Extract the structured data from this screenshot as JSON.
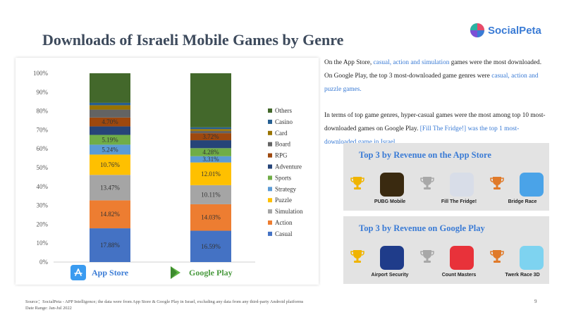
{
  "title": "Downloads of Israeli Mobile Games by Genre",
  "logo": {
    "text": "SocialPeta",
    "colors": [
      "#e94b6a",
      "#3a7bd5",
      "#7b4fd6",
      "#2bb3a3"
    ]
  },
  "chart_data": {
    "type": "bar",
    "stacked": true,
    "categories": [
      "App Store",
      "Google Play"
    ],
    "ylim": [
      0,
      100
    ],
    "yticks": [
      "0%",
      "10%",
      "20%",
      "30%",
      "40%",
      "50%",
      "60%",
      "70%",
      "80%",
      "90%",
      "100%"
    ],
    "legend_position": "right",
    "series": [
      {
        "name": "Casual",
        "color": "#4472c4",
        "values": [
          17.88,
          16.59
        ],
        "labels": [
          "17.88%",
          "16.59%"
        ]
      },
      {
        "name": "Action",
        "color": "#ed7d31",
        "values": [
          14.82,
          14.03
        ],
        "labels": [
          "14.82%",
          "14.03%"
        ]
      },
      {
        "name": "Simulation",
        "color": "#a5a5a5",
        "values": [
          13.47,
          10.11
        ],
        "labels": [
          "13.47%",
          "10.11%"
        ]
      },
      {
        "name": "Puzzle",
        "color": "#ffc000",
        "values": [
          10.76,
          12.01
        ],
        "labels": [
          "10.76%",
          "12.01%"
        ]
      },
      {
        "name": "Strategy",
        "color": "#5b9bd5",
        "values": [
          5.24,
          3.31
        ],
        "labels": [
          "5.24%",
          "3.31%"
        ]
      },
      {
        "name": "Sports",
        "color": "#70ad47",
        "values": [
          5.19,
          4.28
        ],
        "labels": [
          "5.19%",
          "4.28%"
        ]
      },
      {
        "name": "Adventure",
        "color": "#264478",
        "values": [
          4.5,
          4.2
        ],
        "labels": [
          "",
          ""
        ]
      },
      {
        "name": "RPG",
        "color": "#9e480e",
        "values": [
          4.7,
          3.72
        ],
        "labels": [
          "4.70%",
          "3.72%"
        ]
      },
      {
        "name": "Board",
        "color": "#636363",
        "values": [
          4.2,
          1.2
        ],
        "labels": [
          "",
          ""
        ]
      },
      {
        "name": "Card",
        "color": "#997300",
        "values": [
          2.3,
          1.0
        ],
        "labels": [
          "",
          ""
        ]
      },
      {
        "name": "Casino",
        "color": "#255e91",
        "values": [
          1.3,
          0.9
        ],
        "labels": [
          "",
          ""
        ]
      },
      {
        "name": "Others",
        "color": "#43682b",
        "values": [
          15.64,
          28.65
        ],
        "labels": [
          "",
          ""
        ]
      }
    ]
  },
  "stores": [
    {
      "label": "App Store",
      "color": "#3a7bd5",
      "icon": "app-store-icon"
    },
    {
      "label": "Google Play",
      "color": "#4a9a3f",
      "icon": "google-play-icon"
    }
  ],
  "insight": {
    "p1_a": "On the App Store, ",
    "p1_b": "casual, action and simulation",
    "p1_c": " games were the most downloaded. On Google Play, the top 3 most-downloaded game genres were ",
    "p1_d": "casual, action and puzzle games.",
    "p2_a": "In terms of top game genres, hyper-casual games were the most among top 10 most-downloaded games on Google Play. ",
    "p2_b": "[Fill The Fridge!] was the top 1 most-downloaded game in Israel."
  },
  "revenue_app_store": {
    "title": "Top 3 by Revenue on the App Store",
    "games": [
      {
        "name": "PUBG Mobile",
        "rank_color": "#f0b400",
        "icon": "pubg-icon",
        "icon_color": "#3a2a10"
      },
      {
        "name": "Fill The Fridge!",
        "rank_color": "#a8a8a8",
        "icon": "fridge-icon",
        "icon_color": "#d8dde8"
      },
      {
        "name": "Bridge Race",
        "rank_color": "#e07a2a",
        "icon": "bridge-race-icon",
        "icon_color": "#4aa3e8"
      }
    ]
  },
  "revenue_google_play": {
    "title": "Top 3 by Revenue on Google Play",
    "games": [
      {
        "name": "Airport Security",
        "rank_color": "#f0b400",
        "icon": "airport-security-icon",
        "icon_color": "#1f3c8a"
      },
      {
        "name": "Count Masters",
        "rank_color": "#a8a8a8",
        "icon": "count-masters-icon",
        "icon_color": "#e8323a"
      },
      {
        "name": "Twerk Race 3D",
        "rank_color": "#e07a2a",
        "icon": "twerk-race-icon",
        "icon_color": "#7ed3f0"
      }
    ]
  },
  "footer": {
    "source": "Source：SocialPeta - APP Intelligence; the data were from App Store & Google Play in Israel, excluding any data from any third-party Android platforms",
    "date_range": "Date Range: Jan-Jul 2022",
    "page": "9"
  }
}
